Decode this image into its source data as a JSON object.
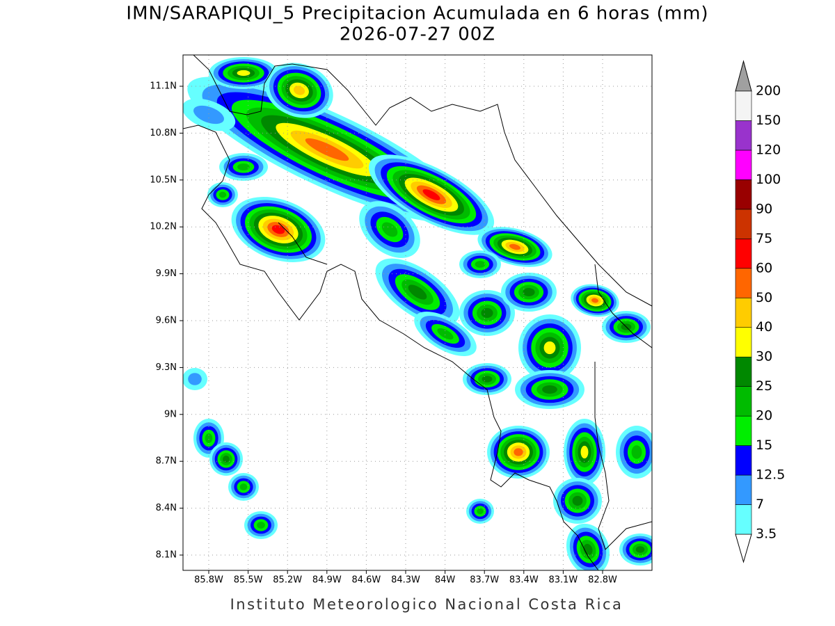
{
  "title": "IMN/SARAPIQUI_5 Precipitacion Acumulada en 6 horas (mm)",
  "subtitle": "2026-07-27 00Z",
  "map": {
    "x_labels": [
      "85.8W",
      "85.5W",
      "85.2W",
      "84.9W",
      "84.6W",
      "84.3W",
      "84W",
      "83.7W",
      "83.4W",
      "83.1W",
      "82.8W"
    ],
    "y_labels": [
      "11.1N",
      "10.8N",
      "10.5N",
      "10.2N",
      "9.9N",
      "9.6N",
      "9.3N",
      "9N",
      "8.7N",
      "8.4N",
      "8.1N"
    ]
  },
  "colorbar": {
    "levels": [
      3.5,
      7,
      12.5,
      15,
      20,
      25,
      30,
      40,
      50,
      60,
      75,
      90,
      100,
      120,
      150,
      200
    ],
    "colors": [
      "#66ffff",
      "#3399ff",
      "#0000ff",
      "#00ee00",
      "#00bb00",
      "#008800",
      "#ffff00",
      "#ffcc00",
      "#ff6600",
      "#ff0000",
      "#cc3300",
      "#990000",
      "#ff00ff",
      "#9933cc",
      "#f4f4f4"
    ],
    "under_color": "#ffffff",
    "over_color": "#a0a0a0"
  },
  "footer": "Instituto Meteorologico Nacional Costa Rica"
}
